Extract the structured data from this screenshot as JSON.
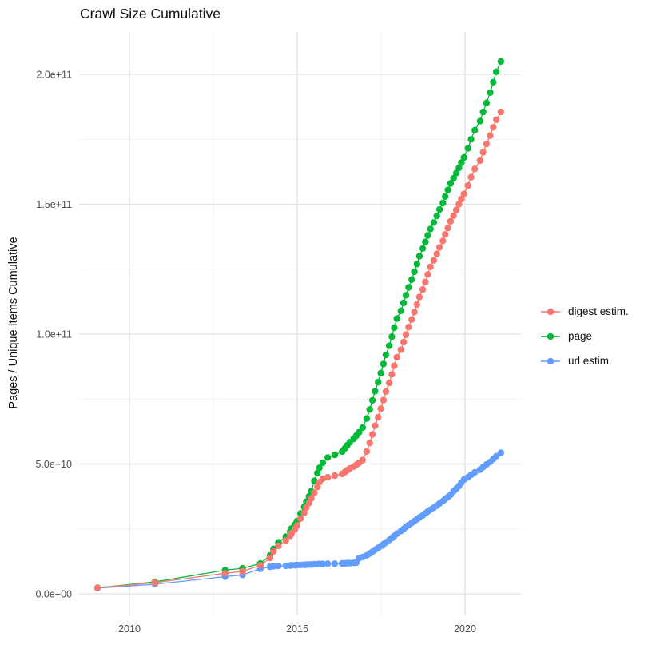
{
  "title": "Crawl Size Cumulative",
  "chart_data": {
    "type": "scatter",
    "title": "Crawl Size Cumulative",
    "xlabel": "",
    "ylabel": "Pages / Unique Items Cumulative",
    "legend_position": "right",
    "grid": true,
    "background": "#ffffff",
    "grid_major_color": "#e2e2e2",
    "grid_minor_color": "#efefef",
    "axis_text_color": "#4d4d4d",
    "x_ticks": [
      2010,
      2015,
      2020
    ],
    "x_tick_labels": [
      "2010",
      "2015",
      "2020"
    ],
    "x_minor_ticks": [
      2012.5,
      2017.5
    ],
    "xlim": [
      2008.5,
      2021.7
    ],
    "y_ticks_billions": [
      0,
      50,
      100,
      150,
      200
    ],
    "y_tick_labels": [
      "0.0e+00",
      "5.0e+10",
      "1.0e+11",
      "1.5e+11",
      "2.0e+11"
    ],
    "y_minor_ticks_billions": [
      25,
      75,
      125,
      175
    ],
    "ylim_billions": [
      -8.3,
      216.3
    ],
    "value_unit": "pages, billions (1e9); axis shows scientific notation",
    "x": [
      2009.05,
      2010.76,
      2012.85,
      2013.37,
      2013.9,
      2014.19,
      2014.29,
      2014.44,
      2014.66,
      2014.79,
      2014.83,
      2014.93,
      2014.99,
      2015.1,
      2015.21,
      2015.27,
      2015.35,
      2015.42,
      2015.51,
      2015.6,
      2015.66,
      2015.76,
      2015.91,
      2016.12,
      2016.34,
      2016.42,
      2016.49,
      2016.57,
      2016.68,
      2016.76,
      2016.84,
      2016.95,
      2017.07,
      2017.16,
      2017.24,
      2017.32,
      2017.41,
      2017.49,
      2017.57,
      2017.64,
      2017.74,
      2017.82,
      2017.89,
      2017.97,
      2018.09,
      2018.17,
      2018.24,
      2018.32,
      2018.41,
      2018.49,
      2018.57,
      2018.64,
      2018.74,
      2018.82,
      2018.89,
      2018.97,
      2019.07,
      2019.16,
      2019.24,
      2019.34,
      2019.41,
      2019.49,
      2019.57,
      2019.66,
      2019.74,
      2019.82,
      2019.89,
      2019.97,
      2020.09,
      2020.18,
      2020.29,
      2020.45,
      2020.54,
      2020.64,
      2020.75,
      2020.84,
      2020.93,
      2021.07
    ],
    "series": [
      {
        "name": "digest estim.",
        "color": "#F8766D",
        "values_billions": [
          2.3,
          4.3,
          7.9,
          8.6,
          11.0,
          13.8,
          16.3,
          18.5,
          20.5,
          22.3,
          23.4,
          24.9,
          26.3,
          29.0,
          31.3,
          33.2,
          35.0,
          36.8,
          39.0,
          41.2,
          43.0,
          44.3,
          44.9,
          45.5,
          46.2,
          46.9,
          47.6,
          48.3,
          49.0,
          49.7,
          50.4,
          51.5,
          54.8,
          58.1,
          61.4,
          64.7,
          68.0,
          71.3,
          74.6,
          77.9,
          81.2,
          84.5,
          87.8,
          91.1,
          94.0,
          96.9,
          99.8,
          102.7,
          105.6,
          108.5,
          111.4,
          114.3,
          117.2,
          120.1,
          123.0,
          125.9,
          128.4,
          130.9,
          133.4,
          135.9,
          138.4,
          140.9,
          143.4,
          145.6,
          147.8,
          150.0,
          152.0,
          154.0,
          157.2,
          160.4,
          163.6,
          166.8,
          170.0,
          173.2,
          176.4,
          179.6,
          182.5,
          185.5
        ]
      },
      {
        "name": "page",
        "color": "#00BA38",
        "values_billions": [
          2.3,
          4.6,
          9.1,
          9.8,
          11.7,
          14.8,
          17.3,
          19.8,
          22.0,
          24.0,
          25.2,
          26.6,
          28.0,
          31.0,
          33.5,
          35.5,
          37.5,
          39.5,
          43.5,
          46.5,
          48.5,
          50.5,
          52.5,
          53.5,
          54.8,
          56.0,
          57.2,
          58.4,
          59.7,
          60.9,
          62.2,
          64.0,
          67.5,
          71.0,
          74.5,
          78.0,
          81.5,
          85.0,
          88.5,
          92.0,
          95.5,
          99.0,
          102.5,
          106.0,
          109.0,
          112.0,
          115.0,
          118.0,
          121.0,
          124.0,
          127.0,
          130.0,
          133.0,
          135.5,
          138.0,
          140.5,
          143.0,
          145.5,
          148.0,
          150.5,
          153.0,
          155.5,
          158.0,
          160.0,
          162.0,
          164.0,
          166.0,
          168.0,
          171.5,
          175.0,
          178.5,
          182.0,
          185.5,
          189.0,
          193.0,
          197.0,
          201.0,
          205.0
        ]
      },
      {
        "name": "url estim.",
        "color": "#619CFF",
        "values_billions": [
          2.2,
          3.7,
          6.6,
          7.3,
          9.6,
          10.4,
          10.6,
          10.7,
          10.8,
          10.9,
          11.0,
          11.0,
          11.1,
          11.1,
          11.2,
          11.2,
          11.3,
          11.3,
          11.4,
          11.4,
          11.5,
          11.5,
          11.6,
          11.6,
          11.7,
          11.7,
          11.8,
          11.8,
          11.9,
          12.0,
          13.7,
          14.2,
          14.8,
          15.5,
          16.2,
          17.0,
          17.7,
          18.4,
          19.1,
          19.8,
          20.7,
          21.5,
          22.3,
          23.2,
          24.2,
          25.0,
          25.8,
          26.5,
          27.3,
          28.0,
          28.7,
          29.4,
          30.2,
          31.0,
          31.7,
          32.4,
          33.2,
          34.0,
          34.8,
          35.7,
          36.5,
          37.3,
          38.1,
          39.5,
          40.5,
          41.5,
          42.8,
          44.0,
          44.9,
          45.8,
          46.8,
          47.8,
          48.8,
          49.8,
          50.8,
          51.9,
          53.0,
          54.3
        ]
      }
    ]
  }
}
